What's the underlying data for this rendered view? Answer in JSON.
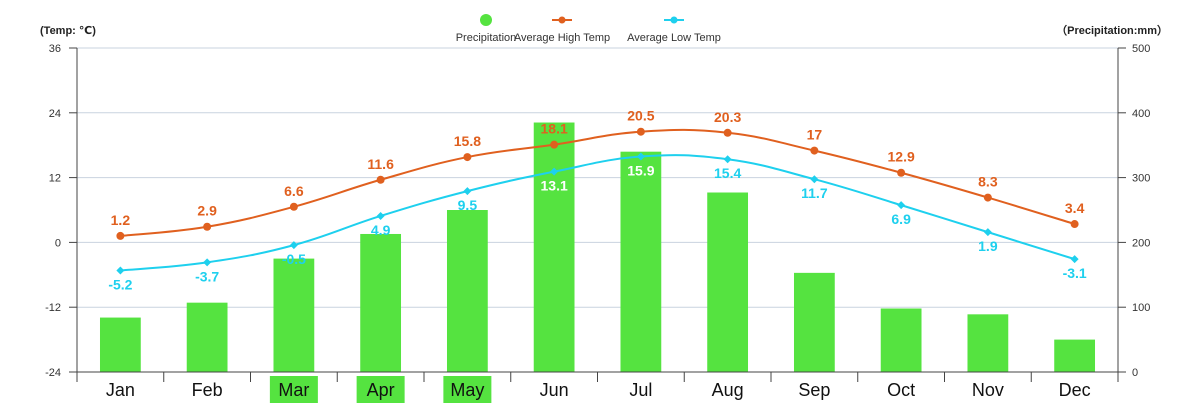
{
  "chart_data": {
    "type": "bar",
    "categories": [
      "Jan",
      "Feb",
      "Mar",
      "Apr",
      "May",
      "Jun",
      "Jul",
      "Aug",
      "Sep",
      "Oct",
      "Nov",
      "Dec"
    ],
    "highlighted_categories": [
      "Mar",
      "Apr",
      "May"
    ],
    "left_axis_title": "(Temp: ℃)",
    "right_axis_title": "（Precipitation:mm）",
    "left_ylim": [
      -24,
      36
    ],
    "left_ticks": [
      36,
      24,
      12,
      0,
      -12,
      -24
    ],
    "right_ylim": [
      0,
      500
    ],
    "right_ticks": [
      500,
      400,
      300,
      200,
      100,
      0
    ],
    "legend_position": "top-center",
    "grid": true,
    "series": [
      {
        "name": "Precipitation",
        "kind": "bar",
        "axis": "right",
        "color": "#55e340",
        "values": [
          84,
          107,
          175,
          213,
          250,
          385,
          340,
          277,
          153,
          98,
          89,
          50
        ]
      },
      {
        "name": "Average High Temp",
        "kind": "line",
        "axis": "left",
        "color": "#e0601f",
        "values": [
          1.2,
          2.9,
          6.6,
          11.6,
          15.8,
          18.1,
          20.5,
          20.3,
          17,
          12.9,
          8.3,
          3.4
        ],
        "labels": [
          "1.2",
          "2.9",
          "6.6",
          "11.6",
          "15.8",
          "18.1",
          "20.5",
          "20.3",
          "17",
          "12.9",
          "8.3",
          "3.4"
        ]
      },
      {
        "name": "Average Low Temp",
        "kind": "line",
        "axis": "left",
        "color": "#1ed0ee",
        "values": [
          -5.2,
          -3.7,
          -0.5,
          4.9,
          9.5,
          13.1,
          15.9,
          15.4,
          11.7,
          6.9,
          1.9,
          -3.1
        ],
        "labels": [
          "-5.2",
          "-3.7",
          "-0.5",
          "4.9",
          "9.5",
          "13.1",
          "15.9",
          "15.4",
          "11.7",
          "6.9",
          "1.9",
          "-3.1"
        ]
      }
    ],
    "highlight_color": "#55e340"
  }
}
